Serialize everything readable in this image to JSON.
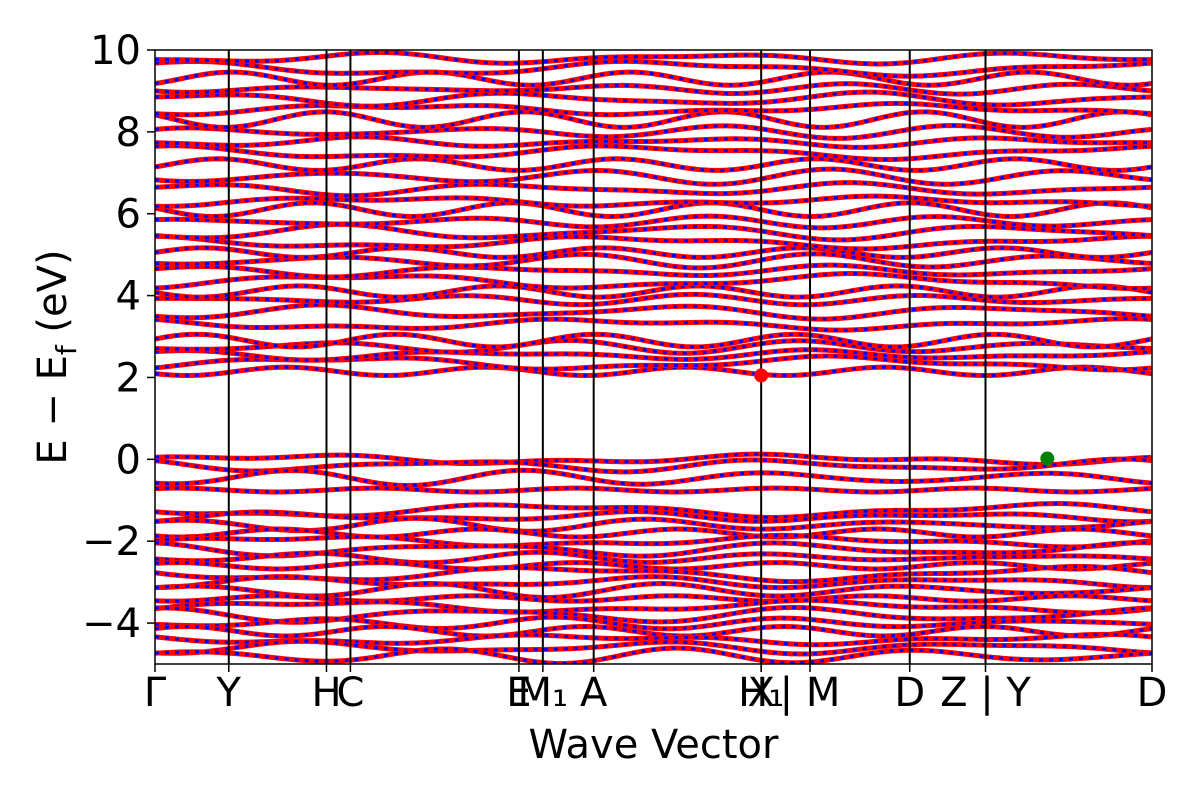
{
  "chart_data": {
    "type": "line",
    "title": "",
    "xlabel": "Wave Vector",
    "ylabel_main": "E − E",
    "ylabel_sub": "f",
    "ylabel_unit": " (eV)",
    "ylim": [
      -5,
      10
    ],
    "yticks": [
      {
        "value": -4,
        "label": "−4"
      },
      {
        "value": -2,
        "label": "−2"
      },
      {
        "value": 0,
        "label": "0"
      },
      {
        "value": 2,
        "label": "2"
      },
      {
        "value": 4,
        "label": "4"
      },
      {
        "value": 6,
        "label": "6"
      },
      {
        "value": 8,
        "label": "8"
      },
      {
        "value": 10,
        "label": "10"
      }
    ],
    "xlim": [
      0,
      1
    ],
    "kpoints": [
      {
        "x": 0.0,
        "label": "Γ"
      },
      {
        "x": 0.074,
        "label": "Y"
      },
      {
        "x": 0.172,
        "label": "H"
      },
      {
        "x": 0.196,
        "label": "C"
      },
      {
        "x": 0.365,
        "label": "E"
      },
      {
        "x": 0.389,
        "label": "M₁"
      },
      {
        "x": 0.44,
        "label": "A"
      },
      {
        "x": 0.608,
        "label": "X"
      },
      {
        "x": 0.608,
        "label": "H₁"
      },
      {
        "x": 0.657,
        "label": "| M"
      },
      {
        "x": 0.757,
        "label": "D"
      },
      {
        "x": 0.833,
        "label": "Z | Y"
      },
      {
        "x": 1.0,
        "label": "D"
      }
    ],
    "series": [
      {
        "color": "#ff0000",
        "style": "solid"
      },
      {
        "color": "#0000ff",
        "style": "dashed"
      }
    ],
    "markers": [
      {
        "x": 0.608,
        "y": 2.05,
        "color": "#ff0000",
        "meaning": "CBM"
      },
      {
        "x": 0.895,
        "y": 0.02,
        "color": "#008000",
        "meaning": "VBM"
      }
    ],
    "valence_band_energies": [
      0.0,
      -0.15,
      -0.45,
      -0.75,
      -1.25,
      -1.4,
      -1.6,
      -1.8,
      -2.0,
      -2.2,
      -2.4,
      -2.6,
      -2.8,
      -3.0,
      -3.2,
      -3.4,
      -3.6,
      -3.8,
      -4.0,
      -4.2,
      -4.4,
      -4.6,
      -4.8
    ],
    "conduction_band_energies": [
      2.15,
      2.35,
      2.55,
      2.75,
      2.9,
      3.3,
      3.6,
      3.9,
      4.1,
      4.35,
      4.6,
      4.85,
      5.05,
      5.3,
      5.55,
      5.8,
      6.1,
      6.3,
      6.6,
      6.9,
      7.2,
      7.5,
      7.75,
      8.0,
      8.3,
      8.55,
      8.8,
      9.05,
      9.3,
      9.55,
      9.8
    ]
  }
}
